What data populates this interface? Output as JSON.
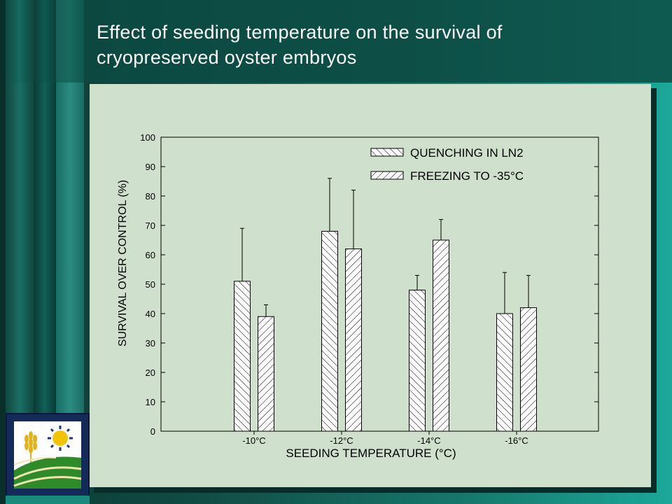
{
  "slide": {
    "title_line1": "Effect of seeding temperature on the survival of",
    "title_line2": "cryopreserved oyster embryos"
  },
  "colors": {
    "panel_bg": "#cfe0cc",
    "title_text": "#ffffff",
    "bar_fill": "#ffffff",
    "bar_stroke": "#000000"
  },
  "chart_data": {
    "type": "bar",
    "title": "",
    "xlabel": "SEEDING TEMPERATURE (°C)",
    "ylabel": "SURVIVAL OVER CONTROL (%)",
    "ylim": [
      0,
      100
    ],
    "yticks": [
      0,
      10,
      20,
      30,
      40,
      50,
      60,
      70,
      80,
      90,
      100
    ],
    "categories": [
      "-10°C",
      "-12°C",
      "-14°C",
      "-16°C"
    ],
    "series": [
      {
        "name": "QUENCHING IN LN2",
        "pattern": "forward-hatch",
        "values": [
          51,
          68,
          48,
          40
        ],
        "error": [
          18,
          18,
          5,
          14
        ]
      },
      {
        "name": "FREEZING TO -35°C",
        "pattern": "back-hatch",
        "values": [
          39,
          62,
          65,
          42
        ],
        "error": [
          4,
          20,
          7,
          11
        ]
      }
    ],
    "legend_position": "top-right",
    "grid": false
  },
  "logo": {
    "icon": "wheat-sun-field-logo"
  }
}
